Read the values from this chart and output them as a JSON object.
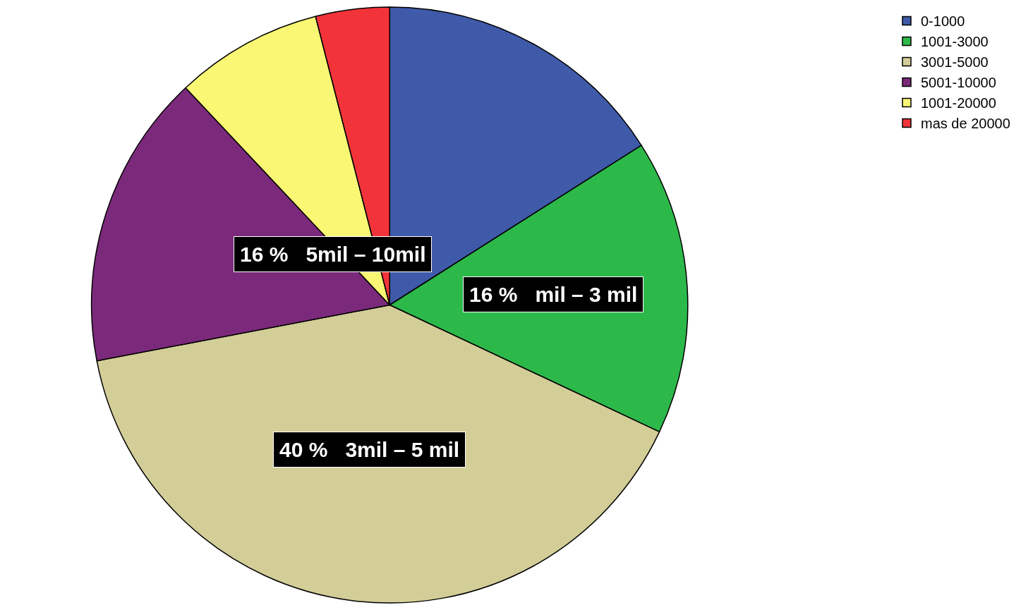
{
  "chart_data": {
    "type": "pie",
    "categories": [
      "0-1000",
      "1001-3000",
      "3001-5000",
      "5001-10000",
      "1001-20000",
      "mas de 20000"
    ],
    "values": [
      16,
      16,
      40,
      16,
      8,
      4
    ],
    "colors": [
      "#3f5aa9",
      "#2db84a",
      "#d3cd98",
      "#7b2a7b",
      "#f9f774",
      "#f2343a"
    ],
    "value_labels": [
      null,
      "16 %   mil – 3 mil",
      "40 %   3mil – 5 mil",
      "16 %   5mil – 10mil",
      null,
      null
    ],
    "legend": "top right"
  }
}
